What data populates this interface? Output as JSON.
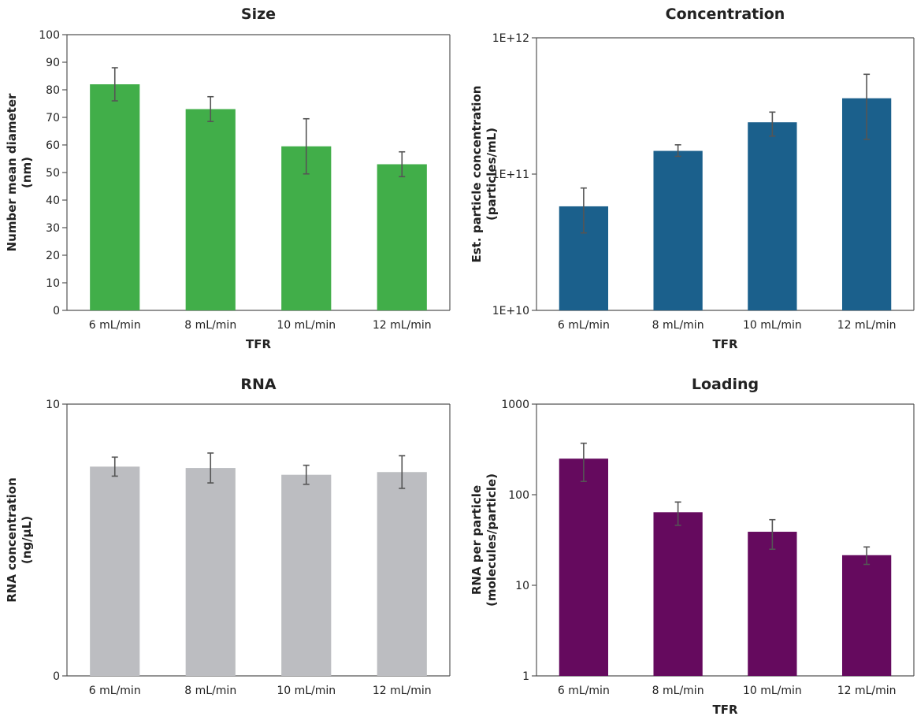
{
  "chart_data": [
    {
      "type": "bar",
      "title": "Size",
      "xlabel": "TFR",
      "ylabel": [
        "Number mean diameter",
        "(nm)"
      ],
      "categories": [
        "6 mL/min",
        "8 mL/min",
        "10 mL/min",
        "12 mL/min"
      ],
      "values": [
        82,
        73,
        59.5,
        53
      ],
      "errors": [
        6,
        4.5,
        10,
        4.5
      ],
      "yscale": "linear",
      "ylim": [
        0,
        100
      ],
      "yticks": [
        0,
        10,
        20,
        30,
        40,
        50,
        60,
        70,
        80,
        90,
        100
      ],
      "ytick_labels": [
        "0",
        "10",
        "20",
        "30",
        "40",
        "50",
        "60",
        "70",
        "80",
        "90",
        "100"
      ],
      "color": "#41AE49",
      "grid": false
    },
    {
      "type": "bar",
      "title": "Concentration",
      "xlabel": "TFR",
      "ylabel": [
        "Est. particle concentration",
        "(particles/mL)"
      ],
      "categories": [
        "6 mL/min",
        "8 mL/min",
        "10 mL/min",
        "12 mL/min"
      ],
      "values": [
        58000000000.0,
        148000000000.0,
        240000000000.0,
        360000000000.0
      ],
      "err_low": [
        37000000000.0,
        135000000000.0,
        190000000000.0,
        180000000000.0
      ],
      "err_high": [
        79000000000.0,
        164000000000.0,
        285000000000.0,
        540000000000.0
      ],
      "yscale": "log",
      "ylim": [
        10000000000.0,
        1000000000000.0
      ],
      "yticks": [
        10000000000.0,
        100000000000.0,
        1000000000000.0
      ],
      "ytick_labels": [
        "1E+10",
        "1E+11",
        "1E+12"
      ],
      "color": "#1B608C",
      "grid": false
    },
    {
      "type": "bar",
      "title": "RNA",
      "xlabel": "",
      "ylabel": [
        "RNA concentration",
        "(ng/µL)"
      ],
      "categories": [
        "6 mL/min",
        "8 mL/min",
        "10 mL/min",
        "12 mL/min"
      ],
      "values": [
        7.7,
        7.65,
        7.4,
        7.5
      ],
      "errors": [
        0.35,
        0.55,
        0.35,
        0.6
      ],
      "yscale": "linear",
      "ylim": [
        0,
        10
      ],
      "yticks": [
        0,
        10
      ],
      "ytick_labels": [
        "0",
        "10"
      ],
      "color": "#BCBDC1",
      "grid": false
    },
    {
      "type": "bar",
      "title": "Loading",
      "xlabel": "TFR",
      "ylabel": [
        "RNA per particle",
        "(molecules/particle)"
      ],
      "categories": [
        "6 mL/min",
        "8 mL/min",
        "10 mL/min",
        "12 mL/min"
      ],
      "values": [
        250,
        64,
        39,
        21.5
      ],
      "err_low": [
        140,
        46,
        25,
        17
      ],
      "err_high": [
        370,
        83,
        53,
        26.5
      ],
      "yscale": "log",
      "ylim": [
        1,
        1000
      ],
      "yticks": [
        1,
        10,
        100,
        1000
      ],
      "ytick_labels": [
        "1",
        "10",
        "100",
        "1000"
      ],
      "color": "#650A5E",
      "grid": false
    }
  ]
}
